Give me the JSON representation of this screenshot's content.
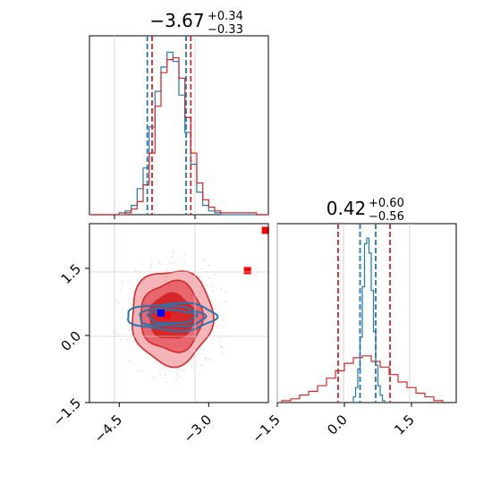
{
  "chart_data": {
    "type": "corner",
    "colors": {
      "series_a": "#1f77b4",
      "series_b": "#d62728",
      "truth_a": "#0000ff",
      "truth_b": "#ff0000"
    },
    "panels": [
      {
        "id": "hist-param1",
        "type": "histogram",
        "title": {
          "main": "−3.67",
          "upper": "+0.34",
          "lower": "−0.33"
        },
        "xlim": [
          -5.0,
          -2.0
        ],
        "quantiles": {
          "series_a": [
            -4.03,
            -3.38
          ],
          "series_b": [
            -3.95,
            -3.3
          ]
        },
        "series": [
          {
            "key": "series_a",
            "bins": [
              -5.0,
              -4.9,
              -4.8,
              -4.7,
              -4.6,
              -4.5,
              -4.4,
              -4.3,
              -4.2,
              -4.1,
              -4.0,
              -3.9,
              -3.8,
              -3.7,
              -3.6,
              -3.5,
              -3.4,
              -3.3,
              -3.2,
              -3.1,
              -3.0,
              -2.9,
              -2.8,
              -2.7,
              -2.6,
              -2.5,
              -2.4,
              -2.3,
              -2.2,
              -2.1,
              -2.0
            ],
            "values": [
              0,
              0,
              0,
              0,
              0,
              0.01,
              0.02,
              0.05,
              0.14,
              0.25,
              0.47,
              0.66,
              0.79,
              0.87,
              0.82,
              0.64,
              0.44,
              0.27,
              0.12,
              0.05,
              0.02,
              0.01,
              0,
              0,
              0,
              0,
              0,
              0,
              0,
              0
            ]
          },
          {
            "key": "series_b",
            "bins": [
              -5.0,
              -4.9,
              -4.8,
              -4.7,
              -4.6,
              -4.5,
              -4.4,
              -4.3,
              -4.2,
              -4.1,
              -4.0,
              -3.9,
              -3.8,
              -3.7,
              -3.6,
              -3.5,
              -3.4,
              -3.3,
              -3.2,
              -3.1,
              -3.0,
              -2.9,
              -2.8,
              -2.7,
              -2.6,
              -2.5,
              -2.4,
              -2.3,
              -2.2,
              -2.1,
              -2.0
            ],
            "values": [
              0,
              0,
              0,
              0,
              0,
              0,
              0.01,
              0.03,
              0.07,
              0.16,
              0.33,
              0.58,
              0.76,
              0.83,
              0.84,
              0.73,
              0.52,
              0.33,
              0.17,
              0.08,
              0.04,
              0.02,
              0.01,
              0.01,
              0.01,
              0.01,
              0.01,
              0.01,
              0,
              0
            ]
          }
        ]
      },
      {
        "id": "hist-param2",
        "type": "histogram",
        "title": {
          "main": "0.42",
          "upper": "+0.60",
          "lower": "−0.56"
        },
        "xlim": [
          -1.5,
          2.5
        ],
        "xticks": [
          "−1.5",
          "0.0",
          "1.5"
        ],
        "xtick_values": [
          -1.5,
          0.0,
          1.5
        ],
        "quantiles": {
          "series_a": [
            0.35,
            0.7
          ],
          "series_b": [
            -0.14,
            1.02
          ]
        },
        "series": [
          {
            "key": "series_a",
            "bins": [
              0.2,
              0.25,
              0.3,
              0.35,
              0.4,
              0.45,
              0.5,
              0.55,
              0.6,
              0.65,
              0.7,
              0.75,
              0.8,
              0.85,
              0.9
            ],
            "values": [
              0.03,
              0.08,
              0.18,
              0.35,
              0.62,
              0.85,
              0.88,
              0.8,
              0.6,
              0.38,
              0.2,
              0.09,
              0.04,
              0.01
            ]
          },
          {
            "key": "series_b",
            "bins": [
              -1.4,
              -1.2,
              -1.0,
              -0.8,
              -0.6,
              -0.4,
              -0.2,
              0.0,
              0.2,
              0.4,
              0.6,
              0.8,
              1.0,
              1.2,
              1.4,
              1.6,
              1.8,
              2.0,
              2.2
            ],
            "values": [
              0.01,
              0.02,
              0.04,
              0.06,
              0.09,
              0.13,
              0.17,
              0.21,
              0.24,
              0.25,
              0.22,
              0.19,
              0.15,
              0.11,
              0.08,
              0.05,
              0.03,
              0.01
            ]
          }
        ]
      },
      {
        "id": "scatter-2d",
        "type": "2d-density",
        "xlim": [
          -5.0,
          -2.0
        ],
        "ylim": [
          -1.5,
          2.5
        ],
        "xticks": [
          "−4.5",
          "−3.0"
        ],
        "xtick_values": [
          -4.5,
          -3.0
        ],
        "yticks": [
          "−1.5",
          "0.0",
          "1.5"
        ],
        "ytick_values": [
          -1.5,
          0.0,
          1.5
        ],
        "center": [
          -3.62,
          0.42
        ],
        "series_b_levels": [
          {
            "rx": 0.68,
            "ry": 1.06
          },
          {
            "rx": 0.52,
            "ry": 0.78
          },
          {
            "rx": 0.38,
            "ry": 0.5
          }
        ],
        "series_a_levels": [
          {
            "rx": 0.75,
            "ry": 0.3
          },
          {
            "rx": 0.55,
            "ry": 0.22
          },
          {
            "rx": 0.4,
            "ry": 0.15
          }
        ],
        "truth_points_b": [
          [
            -3.7,
            0.45
          ],
          [
            -2.35,
            1.45
          ],
          [
            -2.05,
            2.35
          ]
        ],
        "truth_points_a": [
          [
            -3.8,
            0.5
          ]
        ]
      }
    ]
  }
}
